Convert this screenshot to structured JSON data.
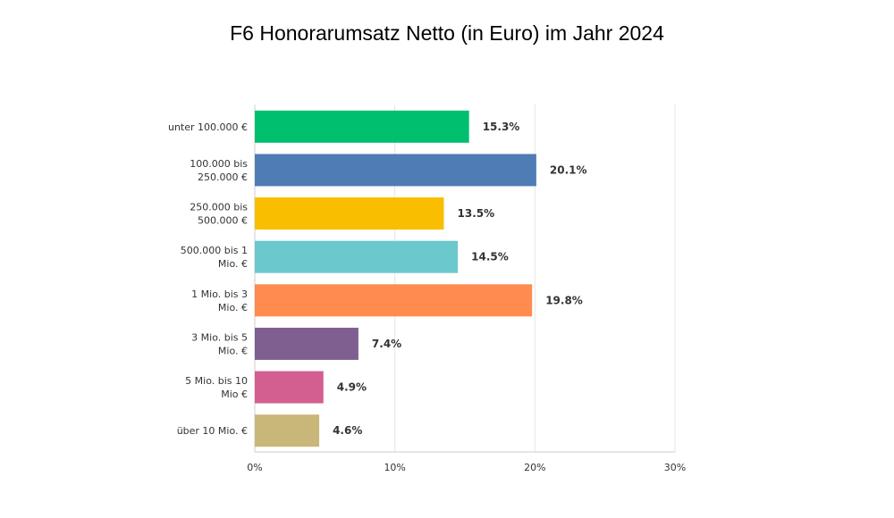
{
  "chart_data": {
    "type": "bar",
    "orientation": "horizontal",
    "title": "F6 Honorarumsatz Netto (in Euro) im Jahr 2024",
    "categories": [
      [
        "unter 100.000 €"
      ],
      [
        "100.000 bis",
        "250.000 €"
      ],
      [
        "250.000 bis",
        "500.000 €"
      ],
      [
        "500.000 bis 1",
        "Mio. €"
      ],
      [
        "1 Mio. bis 3",
        "Mio. €"
      ],
      [
        "3 Mio. bis 5",
        "Mio. €"
      ],
      [
        "5 Mio. bis 10",
        "Mio €"
      ],
      [
        "über 10 Mio. €"
      ]
    ],
    "values": [
      15.3,
      20.1,
      13.5,
      14.5,
      19.8,
      7.4,
      4.9,
      4.6
    ],
    "value_labels": [
      "15.3%",
      "20.1%",
      "13.5%",
      "14.5%",
      "19.8%",
      "7.4%",
      "4.9%",
      "4.6%"
    ],
    "colors": [
      "#00bf6f",
      "#507cb6",
      "#f9be00",
      "#6bc8cd",
      "#ff8b4f",
      "#7f5f90",
      "#d25f90",
      "#c9b77a"
    ],
    "xlim": [
      0,
      30
    ],
    "xticks": [
      0,
      10,
      20,
      30
    ],
    "xtick_labels": [
      "0%",
      "10%",
      "20%",
      "30%"
    ],
    "grid": true
  }
}
